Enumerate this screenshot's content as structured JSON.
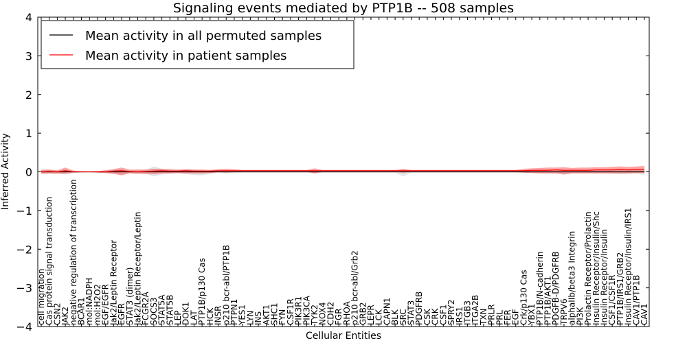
{
  "chart_data": {
    "type": "line",
    "title": "Signaling events mediated by PTP1B -- 508 samples",
    "xlabel": "Cellular Entities",
    "ylabel": "Inferred Activity",
    "ylim": [
      -4,
      4
    ],
    "yticks": [
      -4,
      -3,
      -2,
      -1,
      0,
      1,
      2,
      3,
      4
    ],
    "ytick_labels": [
      "−4",
      "−3",
      "−2",
      "−1",
      "0",
      "1",
      "2",
      "3",
      "4"
    ],
    "legend_position": "top-left",
    "categories": [
      "cell migration",
      "Cas protein signal transduction",
      "CSN2",
      "JAK2",
      "negative regulation of transcription",
      "BCAR1",
      "mol:NADPH",
      "mol:H2O2",
      "EGF/EGFR",
      "Jak2/Leptin Receptor",
      "EGFR",
      "STAT3 (dimer)",
      "Jak2/Leptin Receptor/Leptin",
      "FCGR2A",
      "SOCS3",
      "STAT5A",
      "STAT5B",
      "LEP",
      "DOK1",
      "LAT",
      "PTP1B/p130 Cas",
      "HCK",
      "INSR",
      "p210 bcr-abl/PTP1B",
      "PTPN1",
      "YES1",
      "LYN",
      "INS",
      "AKT1",
      "SHC1",
      "FYN",
      "CSF1R",
      "PIK3R1",
      "PIK3CA",
      "TYK2",
      "NOX4",
      "CDH2",
      "FGR",
      "RHOA",
      "p210 bcr-abl/Grb2",
      "GRB2",
      "LEPR",
      "LCK",
      "CAPN1",
      "BLK",
      "SRC",
      "STAT3",
      "PDGFRB",
      "CSK",
      "CRK",
      "CSF1",
      "SPRY2",
      "IRS1",
      "ITGB3",
      "ITGA2B",
      "TXN",
      "PRLR",
      "PRL",
      "FER",
      "EGF",
      "Crk/p130 Cas",
      "YBX1",
      "PTP1B/N-cadherin",
      "PTP1B/AKT1",
      "PDGFB-D/PDGFRB",
      "TRPV6",
      "alphaIIb/beta3 Integrin",
      "PI3K",
      "Prolactin Receptor/Prolactin",
      "Insulin Receptor/Insulin/Shc",
      "Insulin Receptor/Insulin",
      "CSF1/CSF1R",
      "PTP1B/IRS1/GRB2",
      "Insulin Receptor/Insulin/IRS1",
      "CAV1/PTP1B",
      "CAV1"
    ],
    "series": [
      {
        "name": "Mean activity in all permuted samples",
        "color": "#000000",
        "values": [
          0.0,
          0.0,
          0.0,
          0.0,
          0.0,
          0.0,
          0.0,
          0.0,
          0.0,
          0.0,
          0.0,
          0.0,
          0.0,
          0.0,
          0.0,
          0.0,
          0.0,
          0.0,
          0.0,
          0.0,
          0.0,
          0.0,
          0.0,
          0.0,
          0.0,
          0.0,
          0.0,
          0.0,
          0.0,
          0.0,
          0.0,
          0.0,
          0.0,
          0.0,
          0.0,
          0.0,
          0.0,
          0.0,
          0.0,
          0.0,
          0.0,
          0.0,
          0.0,
          0.0,
          0.0,
          0.0,
          0.0,
          0.0,
          0.0,
          0.0,
          0.0,
          0.0,
          0.0,
          0.0,
          0.0,
          0.0,
          0.0,
          0.0,
          0.0,
          0.0,
          0.0,
          0.0,
          0.0,
          0.0,
          0.0,
          0.0,
          0.0,
          0.0,
          0.0,
          0.0,
          0.0,
          0.0,
          0.0,
          0.0,
          0.0,
          0.0
        ],
        "lower": [
          -0.04,
          -0.05,
          -0.03,
          -0.06,
          -0.03,
          -0.02,
          -0.01,
          -0.02,
          -0.03,
          -0.05,
          -0.07,
          -0.03,
          -0.04,
          -0.05,
          -0.12,
          -0.06,
          -0.05,
          -0.04,
          -0.06,
          -0.08,
          -0.09,
          -0.05,
          -0.03,
          -0.04,
          -0.03,
          -0.02,
          -0.02,
          -0.02,
          -0.02,
          -0.02,
          -0.02,
          -0.02,
          -0.02,
          -0.02,
          -0.04,
          -0.02,
          -0.02,
          -0.02,
          -0.02,
          -0.02,
          -0.02,
          -0.02,
          -0.02,
          -0.02,
          -0.02,
          -0.12,
          -0.02,
          -0.02,
          -0.02,
          -0.02,
          -0.02,
          -0.02,
          -0.02,
          -0.02,
          -0.02,
          -0.02,
          -0.02,
          -0.02,
          -0.02,
          -0.02,
          -0.04,
          -0.03,
          -0.03,
          -0.04,
          -0.04,
          -0.08,
          -0.03,
          -0.03,
          -0.03,
          -0.04,
          -0.04,
          -0.05,
          -0.06,
          -0.05,
          -0.05,
          -0.08
        ],
        "upper": [
          0.04,
          0.05,
          0.03,
          0.06,
          0.03,
          0.02,
          0.01,
          0.02,
          0.03,
          0.05,
          0.07,
          0.03,
          0.04,
          0.05,
          0.14,
          0.08,
          0.05,
          0.04,
          0.06,
          0.05,
          0.04,
          0.03,
          0.03,
          0.04,
          0.03,
          0.02,
          0.02,
          0.02,
          0.02,
          0.02,
          0.02,
          0.02,
          0.02,
          0.02,
          0.04,
          0.02,
          0.02,
          0.02,
          0.02,
          0.02,
          0.02,
          0.02,
          0.02,
          0.02,
          0.02,
          0.06,
          0.02,
          0.02,
          0.02,
          0.02,
          0.02,
          0.02,
          0.02,
          0.02,
          0.02,
          0.02,
          0.02,
          0.02,
          0.02,
          0.02,
          0.04,
          0.03,
          0.03,
          0.04,
          0.04,
          0.05,
          0.03,
          0.03,
          0.03,
          0.04,
          0.04,
          0.05,
          0.06,
          0.05,
          0.05,
          0.08
        ]
      },
      {
        "name": "Mean activity in patient samples",
        "color": "#ff0000",
        "values": [
          0.0,
          0.01,
          0.0,
          0.03,
          0.0,
          0.0,
          0.0,
          0.0,
          0.0,
          0.02,
          0.03,
          0.01,
          0.0,
          0.01,
          0.02,
          0.03,
          0.02,
          0.02,
          0.03,
          0.02,
          0.02,
          0.02,
          0.03,
          0.03,
          0.03,
          0.03,
          0.03,
          0.03,
          0.03,
          0.03,
          0.03,
          0.03,
          0.03,
          0.03,
          0.03,
          0.03,
          0.03,
          0.03,
          0.03,
          0.03,
          0.03,
          0.03,
          0.03,
          0.03,
          0.03,
          0.03,
          0.03,
          0.03,
          0.03,
          0.03,
          0.03,
          0.03,
          0.03,
          0.03,
          0.03,
          0.03,
          0.03,
          0.03,
          0.03,
          0.03,
          0.03,
          0.04,
          0.04,
          0.04,
          0.05,
          0.04,
          0.04,
          0.04,
          0.04,
          0.05,
          0.05,
          0.05,
          0.06,
          0.05,
          0.06,
          0.07
        ],
        "lower": [
          -0.05,
          -0.04,
          -0.05,
          -0.05,
          -0.02,
          -0.01,
          -0.01,
          -0.02,
          -0.03,
          -0.05,
          -0.09,
          -0.04,
          -0.05,
          -0.05,
          -0.06,
          -0.04,
          -0.04,
          -0.03,
          -0.04,
          -0.04,
          -0.04,
          -0.03,
          -0.01,
          -0.02,
          -0.01,
          0.0,
          0.0,
          0.0,
          0.0,
          0.0,
          0.0,
          0.0,
          0.0,
          0.0,
          -0.04,
          0.0,
          0.0,
          0.0,
          0.0,
          0.0,
          0.0,
          0.0,
          0.0,
          0.0,
          0.0,
          -0.02,
          0.0,
          0.0,
          0.0,
          0.0,
          0.0,
          0.0,
          0.0,
          0.0,
          0.0,
          0.0,
          0.0,
          0.0,
          0.0,
          0.0,
          -0.02,
          -0.03,
          -0.04,
          -0.04,
          -0.04,
          -0.06,
          -0.04,
          -0.04,
          -0.04,
          -0.04,
          -0.04,
          -0.04,
          -0.04,
          -0.04,
          -0.03,
          -0.03
        ],
        "upper": [
          0.05,
          0.06,
          0.04,
          0.11,
          0.03,
          0.01,
          0.01,
          0.02,
          0.04,
          0.07,
          0.11,
          0.06,
          0.06,
          0.06,
          0.08,
          0.08,
          0.07,
          0.06,
          0.07,
          0.06,
          0.06,
          0.05,
          0.07,
          0.08,
          0.07,
          0.05,
          0.05,
          0.05,
          0.05,
          0.05,
          0.05,
          0.05,
          0.05,
          0.05,
          0.09,
          0.05,
          0.05,
          0.05,
          0.05,
          0.05,
          0.05,
          0.05,
          0.05,
          0.05,
          0.05,
          0.08,
          0.05,
          0.05,
          0.05,
          0.05,
          0.05,
          0.05,
          0.05,
          0.05,
          0.05,
          0.05,
          0.05,
          0.05,
          0.05,
          0.05,
          0.08,
          0.09,
          0.1,
          0.11,
          0.11,
          0.12,
          0.1,
          0.11,
          0.11,
          0.12,
          0.12,
          0.13,
          0.14,
          0.13,
          0.14,
          0.15
        ]
      }
    ],
    "reference_line": {
      "y": 0,
      "style": "dotted",
      "color": "#ff0000"
    }
  }
}
